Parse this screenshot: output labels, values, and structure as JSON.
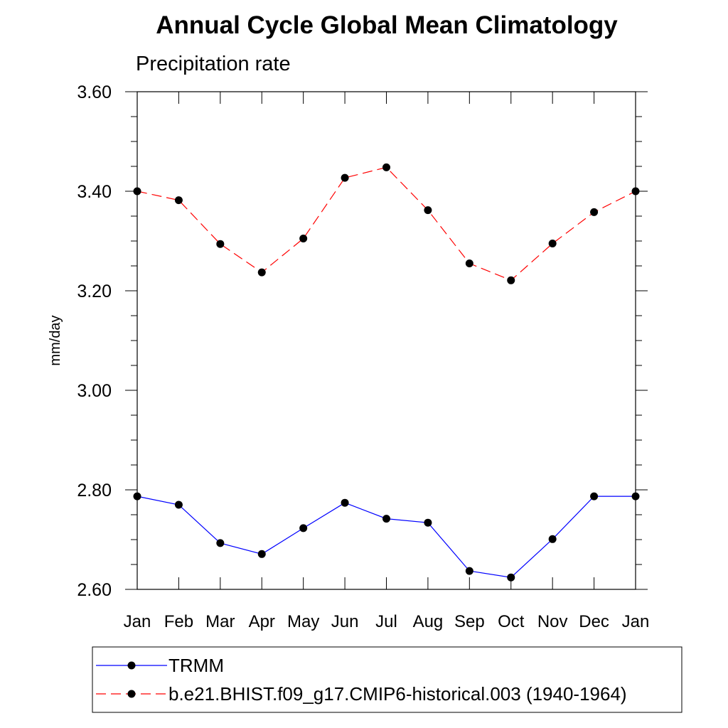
{
  "chart_data": {
    "type": "line",
    "title": "Annual Cycle Global Mean Climatology",
    "subtitle": "Precipitation rate",
    "ylabel": "mm/day",
    "xlabel": "",
    "categories": [
      "Jan",
      "Feb",
      "Mar",
      "Apr",
      "May",
      "Jun",
      "Jul",
      "Aug",
      "Sep",
      "Oct",
      "Nov",
      "Dec",
      "Jan"
    ],
    "ylim": [
      2.6,
      3.6
    ],
    "y_ticks": [
      "2.60",
      "2.80",
      "3.00",
      "3.20",
      "3.40",
      "3.60"
    ],
    "grid": false,
    "legend_position": "bottom",
    "series": [
      {
        "name": "TRMM",
        "color": "#0000ff",
        "dash": "solid",
        "values": [
          2.787,
          2.77,
          2.693,
          2.671,
          2.723,
          2.774,
          2.742,
          2.734,
          2.637,
          2.624,
          2.701,
          2.787,
          2.787
        ]
      },
      {
        "name": "b.e21.BHIST.f09_g17.CMIP6-historical.003 (1940-1964)",
        "color": "#ff0000",
        "dash": "dashed",
        "values": [
          3.4,
          3.382,
          3.294,
          3.237,
          3.305,
          3.427,
          3.448,
          3.362,
          3.255,
          3.221,
          3.295,
          3.358,
          3.4
        ]
      }
    ]
  }
}
